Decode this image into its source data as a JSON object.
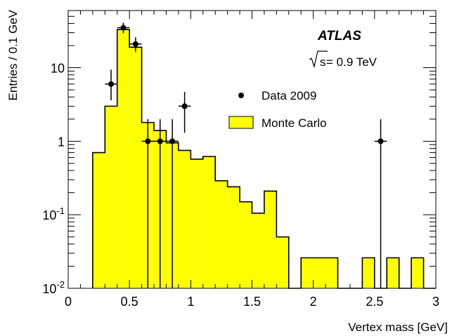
{
  "chart_data": {
    "type": "bar",
    "xlabel": "Vertex mass [GeV]",
    "ylabel": "Entries / 0.1 GeV",
    "xlim": [
      0,
      3
    ],
    "ylim": [
      0.01,
      60
    ],
    "yscale": "log",
    "x_ticks": [
      {
        "value": 0,
        "label": "0"
      },
      {
        "value": 0.5,
        "label": "0.5"
      },
      {
        "value": 1,
        "label": "1"
      },
      {
        "value": 1.5,
        "label": "1.5"
      },
      {
        "value": 2,
        "label": "2"
      },
      {
        "value": 2.5,
        "label": "2.5"
      },
      {
        "value": 3,
        "label": "3"
      }
    ],
    "y_ticks": [
      {
        "value": 0.01,
        "base": "10",
        "exp": "-2"
      },
      {
        "value": 0.1,
        "base": "10",
        "exp": "-1"
      },
      {
        "value": 1,
        "base": "1",
        "exp": ""
      },
      {
        "value": 10,
        "base": "10",
        "exp": ""
      }
    ],
    "experiment": "ATLAS",
    "energy_prefix": "s",
    "energy_value": " = 0.9 TeV",
    "legend_position": "top-right",
    "series": [
      {
        "name": "Monte Carlo",
        "kind": "histogram",
        "color": "#ffff00",
        "bin_edges": [
          0.2,
          0.3,
          0.4,
          0.5,
          0.6,
          0.7,
          0.8,
          0.9,
          1.0,
          1.1,
          1.2,
          1.3,
          1.4,
          1.5,
          1.6,
          1.7,
          1.8,
          1.9,
          2.0,
          2.1,
          2.2,
          2.3,
          2.4,
          2.5,
          2.6,
          2.7,
          2.8,
          2.9,
          3.0
        ],
        "values": [
          0.7,
          3.0,
          33.0,
          19.0,
          1.8,
          1.4,
          0.95,
          0.75,
          0.57,
          0.62,
          0.29,
          0.24,
          0.15,
          0.105,
          0.21,
          0.05,
          0.01,
          0.026,
          0.026,
          0.026,
          0.01,
          0.01,
          0.026,
          0.01,
          0.026,
          0.01,
          0.026,
          0.01
        ]
      },
      {
        "name": "Data 2009",
        "kind": "points",
        "color": "#000000",
        "points": [
          {
            "x": 0.35,
            "y": 6,
            "lo": 3.6,
            "hi": 9.4
          },
          {
            "x": 0.45,
            "y": 35,
            "lo": 29.5,
            "hi": 41
          },
          {
            "x": 0.55,
            "y": 21,
            "lo": 16.5,
            "hi": 26
          },
          {
            "x": 0.65,
            "y": 1,
            "lo": 0.01,
            "hi": 2
          },
          {
            "x": 0.75,
            "y": 1,
            "lo": 0.01,
            "hi": 2
          },
          {
            "x": 0.85,
            "y": 1,
            "lo": 0.01,
            "hi": 2
          },
          {
            "x": 0.95,
            "y": 3,
            "lo": 1.3,
            "hi": 4.7
          },
          {
            "x": 2.55,
            "y": 1,
            "lo": 0.01,
            "hi": 2
          }
        ]
      }
    ]
  }
}
